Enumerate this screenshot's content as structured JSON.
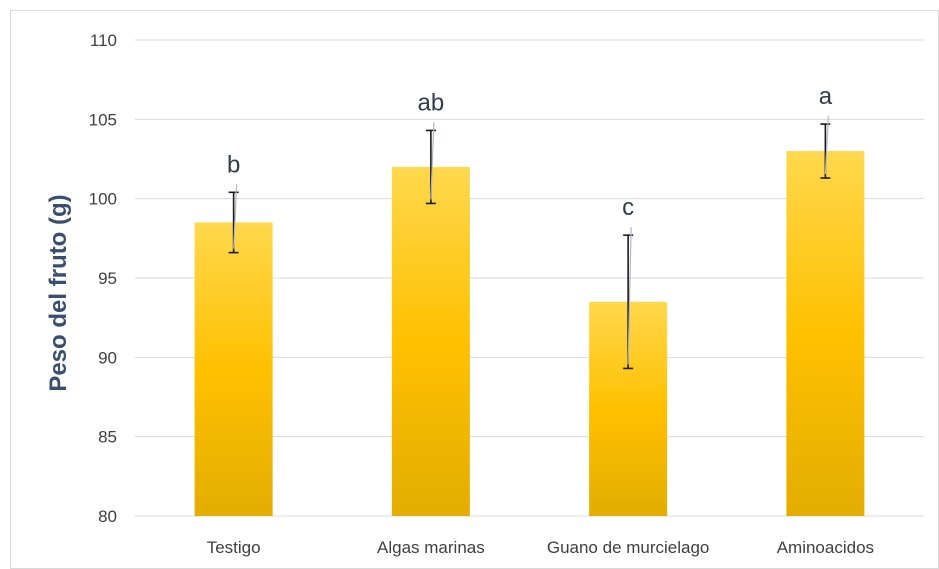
{
  "chart_data": {
    "type": "bar",
    "title": "",
    "xlabel": "",
    "ylabel": "Peso del fruto (g)",
    "ylim": [
      80,
      110
    ],
    "yticks": [
      80,
      85,
      90,
      95,
      100,
      105,
      110
    ],
    "grid": true,
    "categories": [
      "Testigo",
      "Algas marinas",
      "Guano de murcielago",
      "Aminoacidos"
    ],
    "values": [
      98.5,
      102.0,
      93.5,
      103.0
    ],
    "error": [
      1.9,
      2.3,
      4.2,
      1.7
    ],
    "significance": [
      "b",
      "ab",
      "c",
      "a"
    ],
    "colors": {
      "bar_top": "#ffd84d",
      "bar_mid": "#ffc000",
      "bar_bottom": "#e3ad00",
      "grid": "#d9d9d9",
      "axis_label": "#3a4e6e",
      "tick_text": "#404040"
    }
  }
}
